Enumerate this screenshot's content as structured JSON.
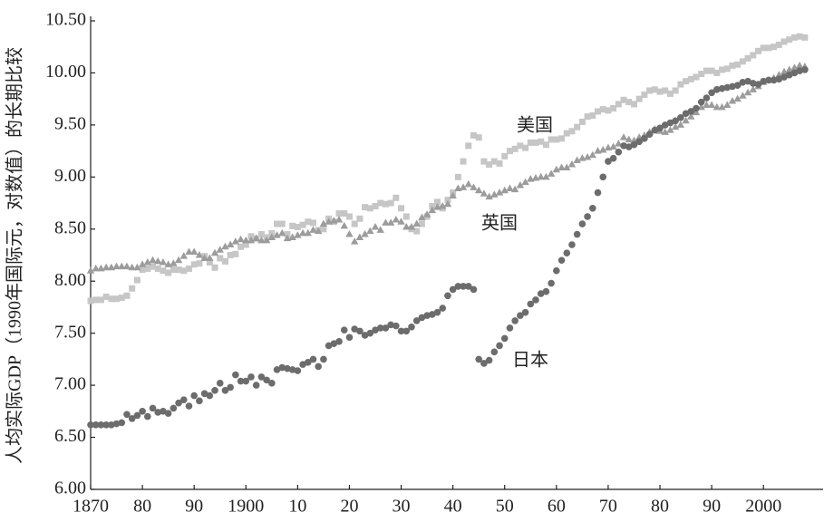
{
  "chart_data": {
    "type": "scatter",
    "y_label": "人均实际GDP（1990年国际元，对数值）的长期比较",
    "x": [
      1870,
      1871,
      1872,
      1873,
      1874,
      1875,
      1876,
      1877,
      1878,
      1879,
      1880,
      1881,
      1882,
      1883,
      1884,
      1885,
      1886,
      1887,
      1888,
      1889,
      1890,
      1891,
      1892,
      1893,
      1894,
      1895,
      1896,
      1897,
      1898,
      1899,
      1900,
      1901,
      1902,
      1903,
      1904,
      1905,
      1906,
      1907,
      1908,
      1909,
      1910,
      1911,
      1912,
      1913,
      1914,
      1915,
      1916,
      1917,
      1918,
      1919,
      1920,
      1921,
      1922,
      1923,
      1924,
      1925,
      1926,
      1927,
      1928,
      1929,
      1930,
      1931,
      1932,
      1933,
      1934,
      1935,
      1936,
      1937,
      1938,
      1939,
      1940,
      1941,
      1942,
      1943,
      1944,
      1945,
      1946,
      1947,
      1948,
      1949,
      1950,
      1951,
      1952,
      1953,
      1954,
      1955,
      1956,
      1957,
      1958,
      1959,
      1960,
      1961,
      1962,
      1963,
      1964,
      1965,
      1966,
      1967,
      1968,
      1969,
      1970,
      1971,
      1972,
      1973,
      1974,
      1975,
      1976,
      1977,
      1978,
      1979,
      1980,
      1981,
      1982,
      1983,
      1984,
      1985,
      1986,
      1987,
      1988,
      1989,
      1990,
      1991,
      1992,
      1993,
      1994,
      1995,
      1996,
      1997,
      1998,
      1999,
      2000,
      2001,
      2002,
      2003,
      2004,
      2005,
      2006,
      2007,
      2008
    ],
    "series": [
      {
        "name": "美国",
        "color": "#c6c6c6",
        "marker": "square",
        "values": [
          7.81,
          7.82,
          7.82,
          7.85,
          7.83,
          7.83,
          7.84,
          7.86,
          7.93,
          8.01,
          8.11,
          8.12,
          8.14,
          8.12,
          8.1,
          8.08,
          8.11,
          8.11,
          8.1,
          8.12,
          8.16,
          8.17,
          8.24,
          8.18,
          8.13,
          8.22,
          8.19,
          8.25,
          8.26,
          8.33,
          8.35,
          8.43,
          8.41,
          8.45,
          8.42,
          8.46,
          8.55,
          8.55,
          8.45,
          8.53,
          8.52,
          8.54,
          8.57,
          8.56,
          8.49,
          8.5,
          8.6,
          8.57,
          8.65,
          8.65,
          8.62,
          8.55,
          8.6,
          8.71,
          8.7,
          8.72,
          8.75,
          8.74,
          8.75,
          8.8,
          8.7,
          8.62,
          8.5,
          8.48,
          8.55,
          8.62,
          8.72,
          8.76,
          8.7,
          8.78,
          8.85,
          9.0,
          9.15,
          9.3,
          9.4,
          9.38,
          9.15,
          9.12,
          9.15,
          9.13,
          9.2,
          9.25,
          9.27,
          9.3,
          9.28,
          9.33,
          9.33,
          9.34,
          9.31,
          9.36,
          9.36,
          9.37,
          9.42,
          9.44,
          9.48,
          9.53,
          9.58,
          9.59,
          9.63,
          9.65,
          9.64,
          9.66,
          9.7,
          9.74,
          9.72,
          9.7,
          9.75,
          9.79,
          9.83,
          9.84,
          9.82,
          9.83,
          9.8,
          9.83,
          9.89,
          9.92,
          9.94,
          9.96,
          9.99,
          10.02,
          10.02,
          10.0,
          10.03,
          10.04,
          10.07,
          10.08,
          10.11,
          10.14,
          10.17,
          10.21,
          10.24,
          10.24,
          10.25,
          10.27,
          10.3,
          10.32,
          10.34,
          10.35,
          10.34
        ]
      },
      {
        "name": "英国",
        "color": "#9c9c9c",
        "marker": "triangle",
        "values": [
          8.1,
          8.12,
          8.12,
          8.13,
          8.13,
          8.14,
          8.14,
          8.14,
          8.13,
          8.13,
          8.16,
          8.18,
          8.2,
          8.19,
          8.18,
          8.16,
          8.17,
          8.2,
          8.24,
          8.28,
          8.28,
          8.25,
          8.22,
          8.22,
          8.27,
          8.3,
          8.33,
          8.35,
          8.38,
          8.4,
          8.39,
          8.39,
          8.41,
          8.39,
          8.39,
          8.42,
          8.44,
          8.46,
          8.41,
          8.42,
          8.44,
          8.46,
          8.46,
          8.49,
          8.48,
          8.55,
          8.57,
          8.58,
          8.59,
          8.53,
          8.45,
          8.38,
          8.42,
          8.45,
          8.48,
          8.52,
          8.49,
          8.56,
          8.56,
          8.59,
          8.57,
          8.52,
          8.52,
          8.55,
          8.61,
          8.64,
          8.68,
          8.71,
          8.72,
          8.74,
          8.82,
          8.89,
          8.9,
          8.93,
          8.9,
          8.87,
          8.84,
          8.81,
          8.83,
          8.85,
          8.87,
          8.89,
          8.88,
          8.92,
          8.95,
          8.98,
          8.99,
          9.0,
          9.0,
          9.03,
          9.07,
          9.09,
          9.09,
          9.12,
          9.16,
          9.18,
          9.19,
          9.21,
          9.25,
          9.26,
          9.28,
          9.29,
          9.32,
          9.38,
          9.36,
          9.35,
          9.38,
          9.4,
          9.43,
          9.46,
          9.44,
          9.43,
          9.45,
          9.48,
          9.5,
          9.54,
          9.58,
          9.62,
          9.67,
          9.69,
          9.69,
          9.67,
          9.67,
          9.69,
          9.73,
          9.75,
          9.78,
          9.81,
          9.84,
          9.87,
          9.91,
          9.93,
          9.95,
          9.98,
          10.01,
          10.03,
          10.05,
          10.07,
          10.06
        ]
      },
      {
        "name": "日本",
        "color": "#6c6c6c",
        "marker": "circle",
        "values": [
          6.62,
          6.62,
          6.62,
          6.62,
          6.62,
          6.63,
          6.64,
          6.72,
          6.68,
          6.71,
          6.75,
          6.7,
          6.78,
          6.74,
          6.75,
          6.73,
          6.78,
          6.83,
          6.86,
          6.8,
          6.9,
          6.85,
          6.92,
          6.9,
          6.95,
          7.02,
          6.95,
          6.98,
          7.1,
          7.04,
          7.04,
          7.08,
          7.0,
          7.08,
          7.05,
          7.02,
          7.15,
          7.17,
          7.16,
          7.15,
          7.14,
          7.2,
          7.22,
          7.25,
          7.18,
          7.25,
          7.38,
          7.4,
          7.42,
          7.53,
          7.46,
          7.54,
          7.52,
          7.48,
          7.5,
          7.53,
          7.55,
          7.55,
          7.58,
          7.57,
          7.52,
          7.52,
          7.56,
          7.62,
          7.65,
          7.67,
          7.68,
          7.7,
          7.74,
          7.86,
          7.92,
          7.95,
          7.95,
          7.95,
          7.92,
          7.25,
          7.21,
          7.24,
          7.32,
          7.38,
          7.45,
          7.55,
          7.62,
          7.67,
          7.7,
          7.78,
          7.82,
          7.88,
          7.9,
          7.98,
          8.1,
          8.2,
          8.27,
          8.35,
          8.45,
          8.55,
          8.62,
          8.7,
          8.85,
          9.0,
          9.15,
          9.18,
          9.24,
          9.3,
          9.29,
          9.31,
          9.34,
          9.37,
          9.41,
          9.45,
          9.47,
          9.5,
          9.52,
          9.54,
          9.57,
          9.61,
          9.63,
          9.66,
          9.72,
          9.76,
          9.81,
          9.84,
          9.85,
          9.86,
          9.87,
          9.88,
          9.91,
          9.92,
          9.9,
          9.89,
          9.92,
          9.93,
          9.93,
          9.94,
          9.96,
          9.98,
          10.0,
          10.02,
          10.03
        ]
      }
    ],
    "xlim": [
      1870,
      2011
    ],
    "ylim": [
      6,
      10.5
    ],
    "xticks": [
      1870,
      {
        "value": 1880,
        "label": "80"
      },
      {
        "value": 1890,
        "label": "90"
      },
      1900,
      {
        "value": 1910,
        "label": "10"
      },
      {
        "value": 1920,
        "label": "20"
      },
      {
        "value": 1930,
        "label": "30"
      },
      {
        "value": 1940,
        "label": "40"
      },
      {
        "value": 1950,
        "label": "50"
      },
      {
        "value": 1960,
        "label": "60"
      },
      {
        "value": 1970,
        "label": "70"
      },
      {
        "value": 1980,
        "label": "80"
      },
      {
        "value": 1990,
        "label": "90"
      },
      2000
    ],
    "yticks": [
      {
        "value": 6,
        "label": "6.00"
      },
      {
        "value": 6.5,
        "label": "6.50"
      },
      {
        "value": 7,
        "label": "7.00"
      },
      {
        "value": 7.5,
        "label": "7.50"
      },
      {
        "value": 8,
        "label": "8.00"
      },
      {
        "value": 8.5,
        "label": "8.50"
      },
      {
        "value": 9,
        "label": "9.00"
      },
      {
        "value": 9.5,
        "label": "9.50"
      },
      {
        "value": 10,
        "label": "10.00"
      },
      {
        "value": 10.5,
        "label": "10.50"
      }
    ],
    "grid": false
  }
}
